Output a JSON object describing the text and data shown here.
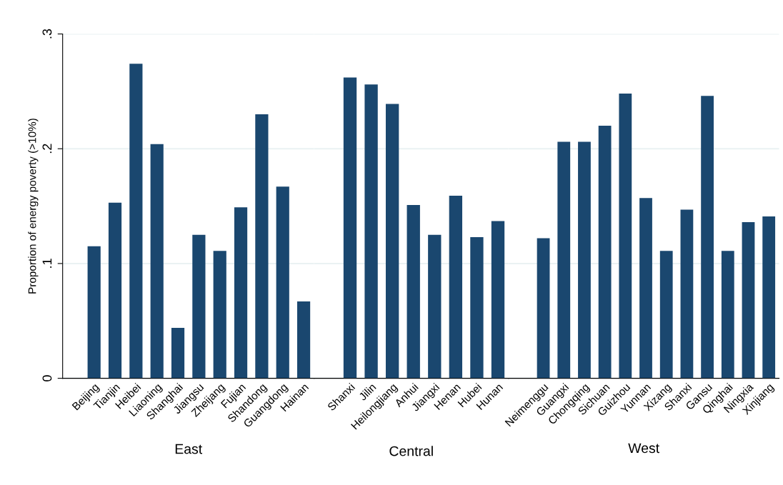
{
  "chart_data": [
    {
      "type": "bar",
      "xlabel": "East",
      "ylabel": "Proportion of energy poverty (>10%)",
      "color": "#1a476f",
      "categories": [
        "Beijing",
        "Tianjin",
        "Heibei",
        "Liaoning",
        "Shanghai",
        "Jiangsu",
        "Zheijang",
        "Fujian",
        "Shandong",
        "Guangdong",
        "Hainan"
      ],
      "values": [
        0.115,
        0.153,
        0.274,
        0.204,
        0.044,
        0.125,
        0.111,
        0.149,
        0.23,
        0.167,
        0.067
      ],
      "ylim": [
        0,
        0.3
      ],
      "yticks": [
        {
          "value": 0,
          "label": "0"
        },
        {
          "value": 0.1,
          "label": ".1"
        },
        {
          "value": 0.2,
          "label": ".2"
        },
        {
          "value": 0.3,
          "label": ".3"
        }
      ],
      "grid": "y"
    },
    {
      "type": "bar",
      "xlabel": "Central",
      "color": "#1a476f",
      "categories": [
        "Shanxi",
        "Jilin",
        "Heilongjiang",
        "Anhui",
        "Jiangxi",
        "Henan",
        "Hubei",
        "Hunan"
      ],
      "values": [
        0.262,
        0.256,
        0.239,
        0.151,
        0.125,
        0.159,
        0.123,
        0.137
      ],
      "ylim": [
        0,
        0.3
      ],
      "tick_labels": "x",
      "grid": "y"
    },
    {
      "type": "bar",
      "xlabel": "West",
      "color": "#1a476f",
      "categories": [
        "Neimenggu",
        "Guangxi",
        "Chongqing",
        "Sichuan",
        "Guizhou",
        "Yunnan",
        "Xizang",
        "Shanxi",
        "Gansu",
        "Qinghai",
        "Ningxia",
        "Xinjiang"
      ],
      "values": [
        0.122,
        0.206,
        0.206,
        0.22,
        0.248,
        0.157,
        0.111,
        0.147,
        0.246,
        0.111,
        0.136,
        0.141
      ],
      "ylim": [
        0,
        0.3
      ],
      "tick_labels": "x",
      "grid": "y"
    }
  ]
}
